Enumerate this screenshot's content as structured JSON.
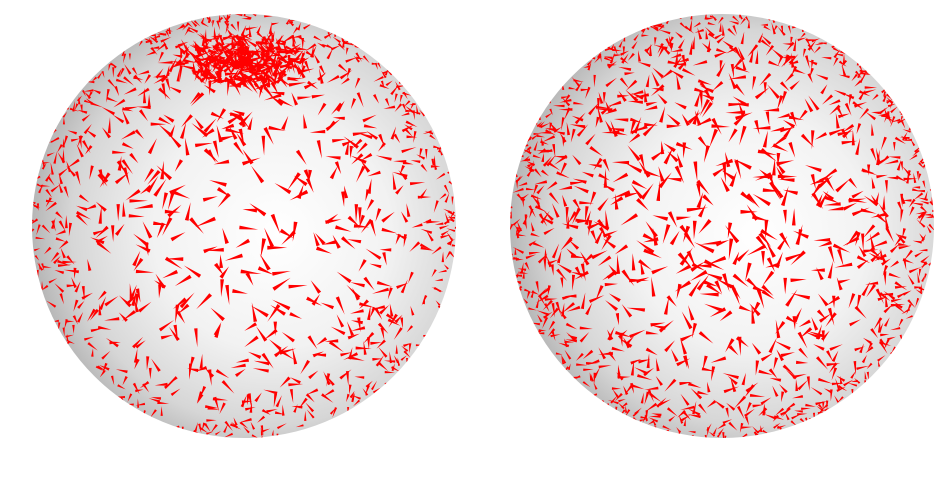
{
  "scene": {
    "description_hidden": "",
    "background_color": "#ffffff",
    "sphere_base_color": "#f2f2f2",
    "sphere_shadow_color": "#8c8c8c",
    "glyph_color": "#ff0000",
    "spheres": [
      {
        "name": "left",
        "distribution": "clustered-top"
      },
      {
        "name": "right",
        "distribution": "uniform"
      }
    ]
  }
}
